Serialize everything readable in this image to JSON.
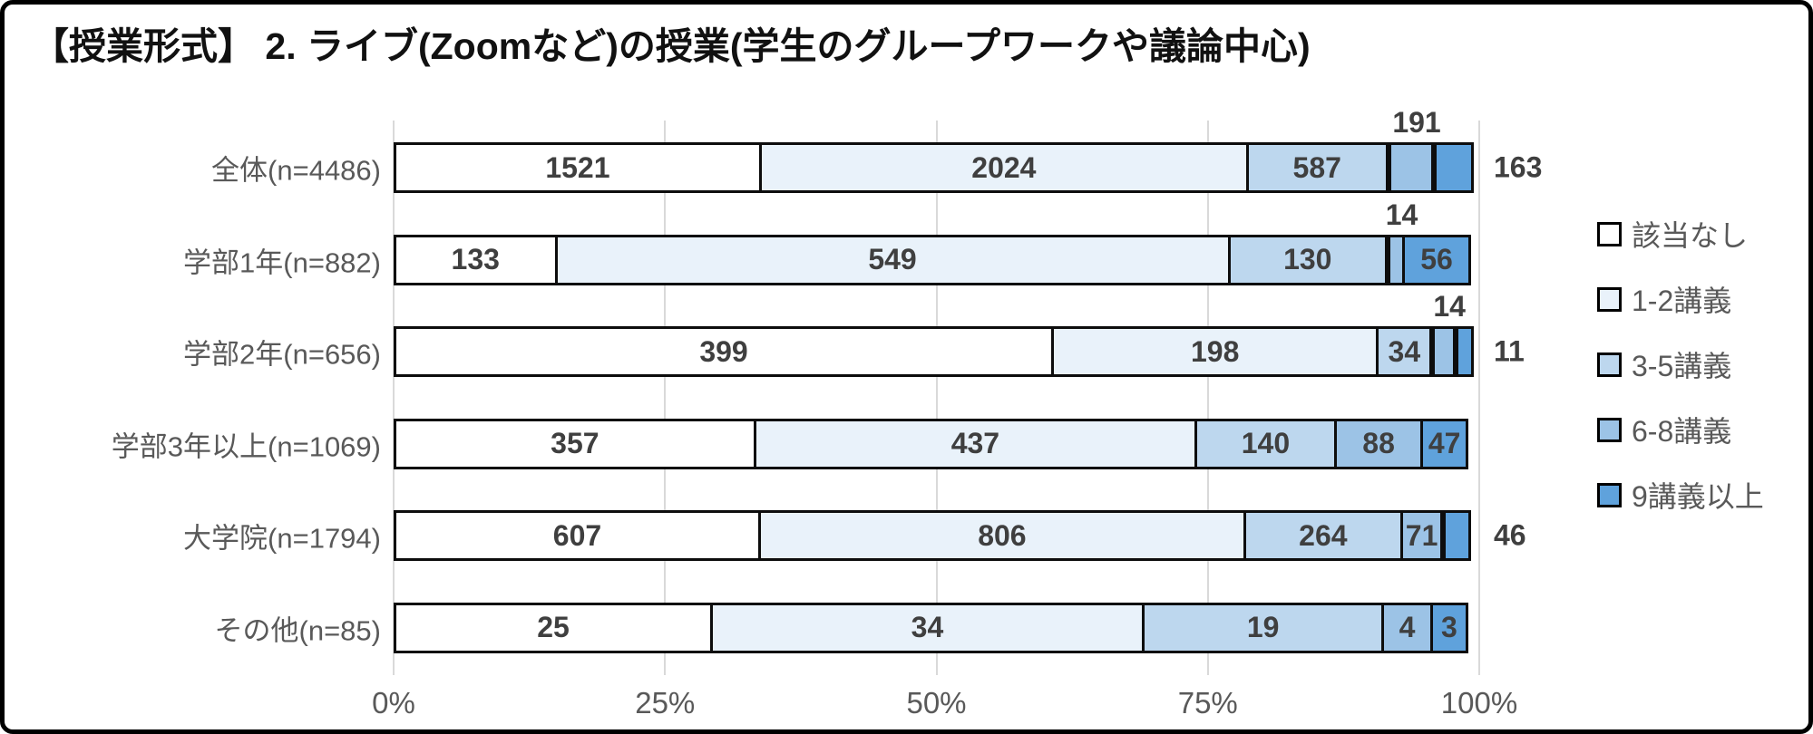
{
  "chart_data": {
    "type": "bar",
    "variant": "stacked-horizontal-100percent",
    "title": "【授業形式】 2. ライブ(Zoomなど)の授業(学生のグループワークや議論中心)",
    "series_labels": [
      "該当なし",
      "1-2講義",
      "3-5講義",
      "6-8講義",
      "9講義以上"
    ],
    "series_colors": [
      "#ffffff",
      "#e9f2fa",
      "#bdd7ee",
      "#9cc3e6",
      "#5fa2dc"
    ],
    "categories": [
      "全体(n=4486)",
      "学部1年(n=882)",
      "学部2年(n=656)",
      "学部3年以上(n=1069)",
      "大学院(n=1794)",
      "その他(n=85)"
    ],
    "rows": [
      {
        "category": "全体(n=4486)",
        "values": [
          1521,
          2024,
          587,
          191,
          163
        ],
        "label_placement": [
          "inside",
          "inside",
          "inside",
          "above",
          "right"
        ]
      },
      {
        "category": "学部1年(n=882)",
        "values": [
          133,
          549,
          130,
          14,
          56
        ],
        "label_placement": [
          "inside",
          "inside",
          "inside",
          "above",
          "inside"
        ]
      },
      {
        "category": "学部2年(n=656)",
        "values": [
          399,
          198,
          34,
          14,
          11
        ],
        "label_placement": [
          "inside",
          "inside",
          "inside",
          "above",
          "right"
        ]
      },
      {
        "category": "学部3年以上(n=1069)",
        "values": [
          357,
          437,
          140,
          88,
          47
        ],
        "label_placement": [
          "inside",
          "inside",
          "inside",
          "inside",
          "inside"
        ]
      },
      {
        "category": "大学院(n=1794)",
        "values": [
          607,
          806,
          264,
          71,
          46
        ],
        "label_placement": [
          "inside",
          "inside",
          "inside",
          "inside",
          "right"
        ]
      },
      {
        "category": "その他(n=85)",
        "values": [
          25,
          34,
          19,
          4,
          3
        ],
        "label_placement": [
          "inside",
          "inside",
          "inside",
          "inside",
          "inside"
        ]
      }
    ],
    "x_axis": {
      "tick_labels": [
        "0%",
        "25%",
        "50%",
        "75%",
        "100%"
      ],
      "tick_positions": [
        0,
        25,
        50,
        75,
        100
      ],
      "range": [
        0,
        100
      ],
      "grid": true
    },
    "legend": {
      "position": "right",
      "entries": [
        "該当なし",
        "1-2講義",
        "3-5講義",
        "6-8講義",
        "9講義以上"
      ]
    },
    "style_colors": {
      "grid": "#d9d9d9",
      "segment_border": "#0d0d0d",
      "value_text": "#3f3f3f",
      "label_text": "#595959",
      "frame_border": "#000000"
    }
  }
}
